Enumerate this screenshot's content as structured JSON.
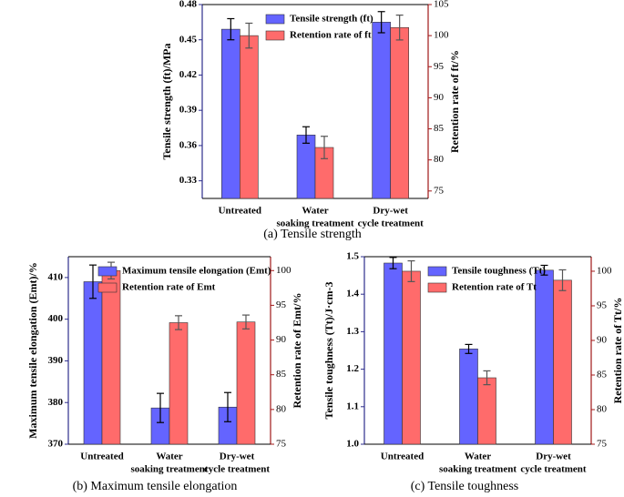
{
  "chart_data": [
    {
      "type": "bar",
      "title": "(a) Tensile strength",
      "ylabel": "Tensile strength (ft)/MPa",
      "y2label": "Retention rate of ft/%",
      "categories": [
        [
          "Untreated"
        ],
        [
          "Water",
          "soaking treatment"
        ],
        [
          "Dry-wet",
          "cycle treatment"
        ]
      ],
      "series": [
        {
          "name": "Tensile strength (ft)",
          "color": "#6464ff",
          "values": [
            0.459,
            0.369,
            0.465
          ],
          "errors": [
            0.009,
            0.007,
            0.009
          ]
        },
        {
          "name": "Retention rate of ft",
          "color": "#ff6b6b",
          "axis": "y2",
          "values": [
            100,
            82,
            101.3
          ],
          "errors": [
            2,
            1.8,
            2
          ]
        }
      ],
      "ylim": [
        0.315,
        0.48
      ],
      "yticks": [
        0.33,
        0.36,
        0.39,
        0.42,
        0.45,
        0.48
      ],
      "y2lim": [
        73.8,
        105
      ],
      "y2ticks": [
        75,
        80,
        85,
        90,
        95,
        100,
        105
      ],
      "legend": "upper right"
    },
    {
      "type": "bar",
      "title": "(b) Maximum tensile elongation",
      "ylabel": "Maximum tensile elongation (Emt)/%",
      "y2label": "Retention rate of Emt/%",
      "categories": [
        [
          "Untreated"
        ],
        [
          "Water",
          "soaking treatment"
        ],
        [
          "Dry-wet",
          "cycle treatment"
        ]
      ],
      "series": [
        {
          "name": "Maximum tensile elongation (Emt)",
          "color": "#6464ff",
          "values": [
            409,
            378.7,
            378.9
          ],
          "errors": [
            4,
            3.5,
            3.5
          ]
        },
        {
          "name": "Retention rate of Emt",
          "color": "#ff6b6b",
          "axis": "y2",
          "values": [
            100,
            92.5,
            92.6
          ],
          "errors": [
            1.2,
            1,
            1
          ]
        }
      ],
      "ylim": [
        370,
        415
      ],
      "yticks": [
        370,
        380,
        390,
        400,
        410
      ],
      "y2lim": [
        75,
        102
      ],
      "y2ticks": [
        75,
        80,
        85,
        90,
        95,
        100
      ],
      "legend": "upper right"
    },
    {
      "type": "bar",
      "title": "(c) Tensile toughness",
      "ylabel": "Tensile toughness (Tt)/J·cm-3",
      "y2label": "Retention rate of Tt/%",
      "categories": [
        [
          "Untreated"
        ],
        [
          "Water",
          "soaking treatment"
        ],
        [
          "Dry-wet",
          "cycle treatment"
        ]
      ],
      "series": [
        {
          "name": "Tensile toughness (Tt)",
          "color": "#6464ff",
          "values": [
            1.483,
            1.254,
            1.464
          ],
          "errors": [
            0.015,
            0.012,
            0.013
          ]
        },
        {
          "name": "Retention rate of Tt",
          "color": "#ff6b6b",
          "axis": "y2",
          "values": [
            100,
            84.6,
            98.7
          ],
          "errors": [
            1.5,
            1,
            1.5
          ]
        }
      ],
      "ylim": [
        1.0,
        1.5
      ],
      "yticks": [
        {
          "value": 1,
          "label": "1.0"
        },
        1.1,
        1.2,
        1.3,
        1.4,
        1.5
      ],
      "y2lim": [
        75,
        102.1
      ],
      "y2ticks": [
        75,
        80,
        85,
        90,
        95,
        100
      ],
      "legend": "upper right"
    }
  ]
}
